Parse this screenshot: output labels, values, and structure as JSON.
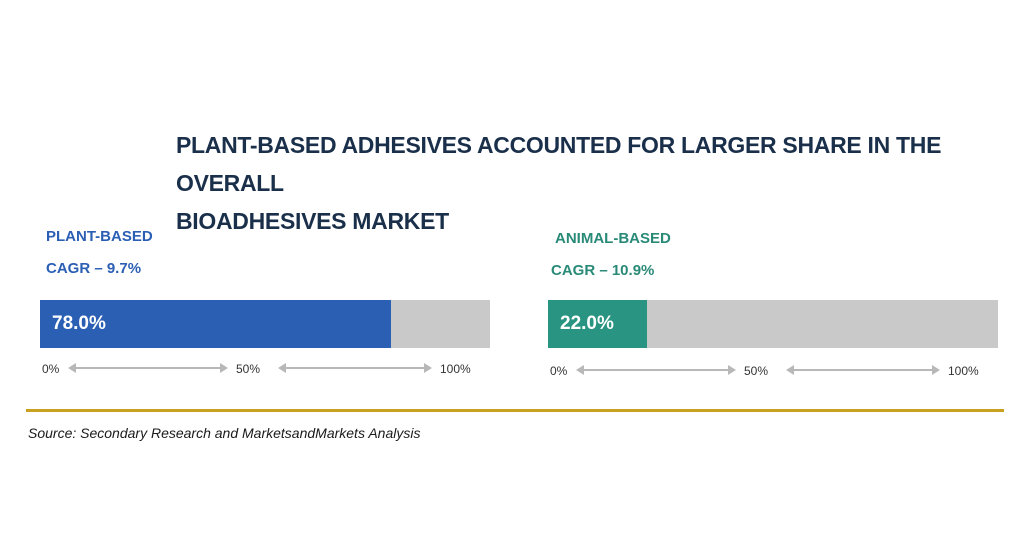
{
  "title_line1": "PLANT-BASED ADHESIVES ACCOUNTED FOR LARGER SHARE IN THE OVERALL",
  "title_line2": "BIOADHESIVES MARKET",
  "source": "Source: Secondary Research and MarketsandMarkets Analysis",
  "colors": {
    "plant": "#2b5fb4",
    "animal": "#2a9482",
    "track": "#c9c9c9",
    "rule": "#c8a21e"
  },
  "chart_data": [
    {
      "type": "bar",
      "name": "PLANT-BASED",
      "cagr": "CAGR – 9.7%",
      "value": 78.0,
      "value_label": "78.0%",
      "xlim": [
        0,
        100
      ],
      "ticks": [
        "0%",
        "50%",
        "100%"
      ]
    },
    {
      "type": "bar",
      "name": "ANIMAL-BASED",
      "cagr": "CAGR – 10.9%",
      "value": 22.0,
      "value_label": "22.0%",
      "xlim": [
        0,
        100
      ],
      "ticks": [
        "0%",
        "50%",
        "100%"
      ]
    }
  ]
}
